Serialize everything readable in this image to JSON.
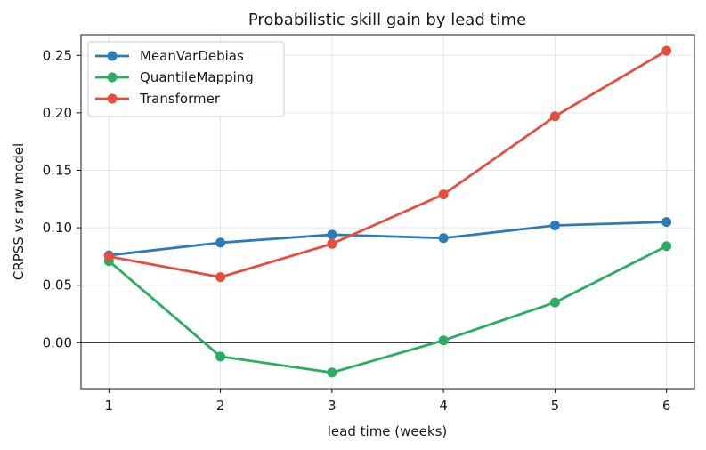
{
  "chart_data": {
    "type": "line",
    "title": "Probabilistic skill gain by lead time",
    "xlabel": "lead time (weeks)",
    "ylabel": "CRPSS vs raw model",
    "x": [
      1,
      2,
      3,
      4,
      5,
      6
    ],
    "xticks": [
      "1",
      "2",
      "3",
      "4",
      "5",
      "6"
    ],
    "yticks": [
      "0.00",
      "0.05",
      "0.10",
      "0.15",
      "0.20",
      "0.25"
    ],
    "ylim": [
      -0.04,
      0.268
    ],
    "xlim": [
      0.75,
      6.25
    ],
    "grid": true,
    "zero_line": true,
    "legend_position": "top-left",
    "series": [
      {
        "name": "MeanVarDebias",
        "color": "#2b7bba",
        "values": [
          0.076,
          0.087,
          0.094,
          0.091,
          0.102,
          0.105
        ]
      },
      {
        "name": "QuantileMapping",
        "color": "#27ae60",
        "values": [
          0.071,
          -0.012,
          -0.026,
          0.002,
          0.035,
          0.084
        ]
      },
      {
        "name": "Transformer",
        "color": "#e74c3c",
        "values": [
          0.075,
          0.057,
          0.086,
          0.129,
          0.197,
          0.254
        ]
      }
    ]
  }
}
